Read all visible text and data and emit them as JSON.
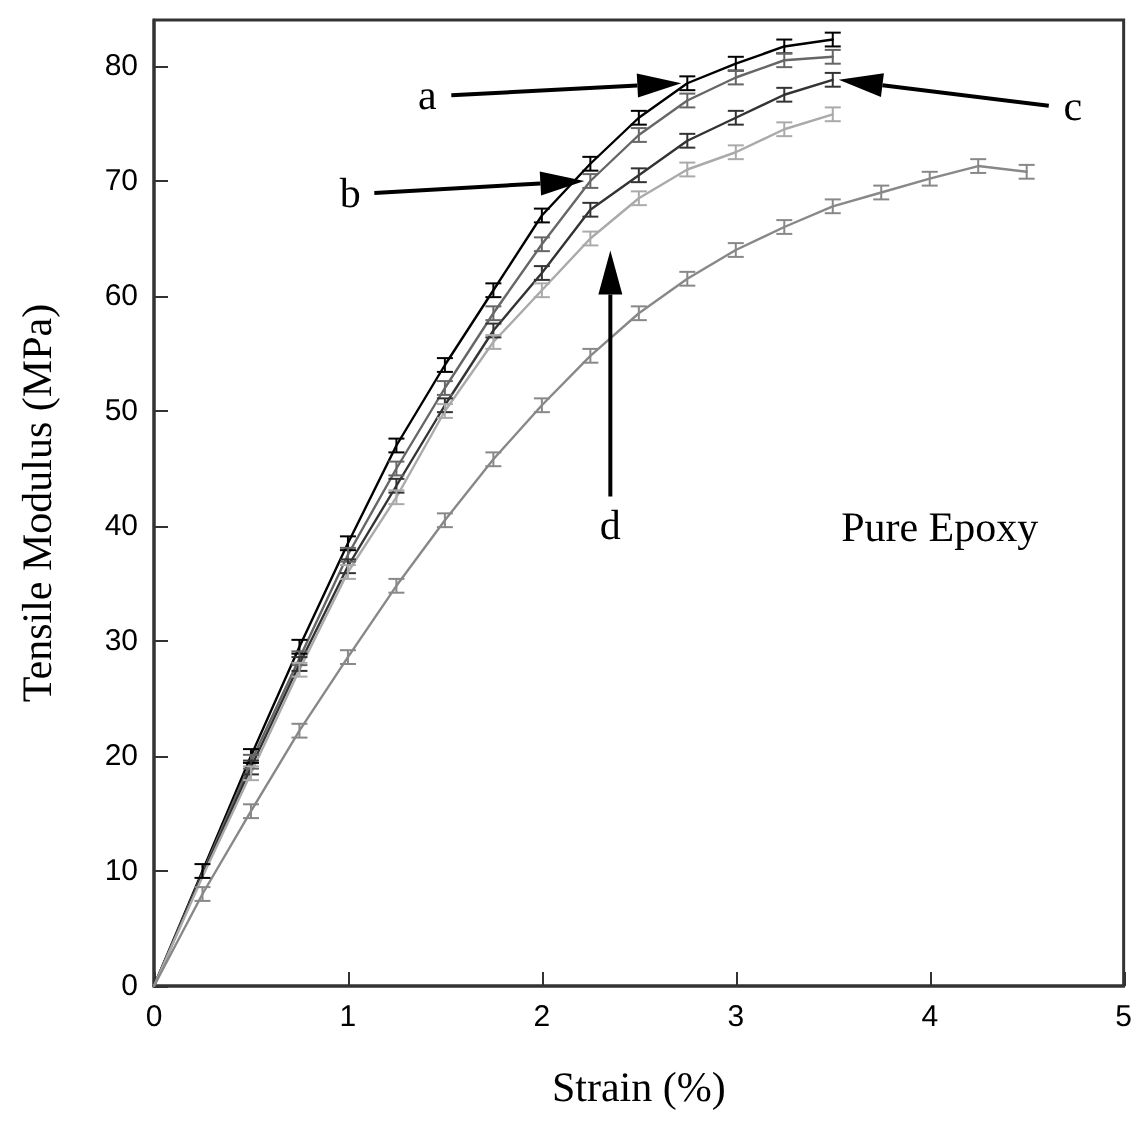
{
  "chart_data": {
    "type": "line",
    "xlabel": "Strain (%)",
    "ylabel": "Tensile Modulus (MPa)",
    "xlim": [
      0,
      5
    ],
    "xticks": [
      0,
      1,
      2,
      3,
      4,
      5
    ],
    "ylim": [
      0,
      84
    ],
    "yticks": [
      0,
      10,
      20,
      30,
      40,
      50,
      60,
      70,
      80
    ],
    "grid": false,
    "marker": "none",
    "line_style": "solid",
    "annotations": [
      "a",
      "b",
      "c",
      "d",
      "Pure Epoxy"
    ],
    "series": [
      {
        "color": "#000000",
        "x": [
          0,
          0.25,
          0.5,
          0.75,
          1,
          1.25,
          1.5,
          1.75,
          2,
          2.25,
          2.5,
          2.75,
          3,
          3.25,
          3.5
        ],
        "values": [
          0,
          10,
          20,
          29.5,
          38.5,
          47,
          54,
          60.5,
          67,
          71.5,
          75.5,
          78.5,
          80.2,
          81.7,
          82.3
        ],
        "errors": [
          null,
          0.6,
          0.6,
          0.6,
          0.6,
          0.6,
          0.6,
          0.6,
          0.6,
          0.6,
          0.6,
          0.6,
          0.6,
          0.6,
          0.6
        ]
      },
      {
        "color": "#666666",
        "x": [
          0,
          0.25,
          0.5,
          0.75,
          1,
          1.25,
          1.5,
          1.75,
          2,
          2.25,
          2.5,
          2.75,
          3,
          3.25,
          3.5
        ],
        "values": [
          0,
          9.8,
          19.5,
          28.5,
          37.5,
          45,
          52,
          58.5,
          64.5,
          70,
          74,
          77,
          79,
          80.5,
          80.8
        ],
        "errors": [
          null,
          null,
          0.6,
          0.6,
          0.6,
          0.6,
          0.6,
          0.6,
          0.6,
          0.6,
          0.6,
          0.6,
          0.6,
          0.6,
          0.6
        ]
      },
      {
        "color": "#333333",
        "x": [
          0,
          0.25,
          0.5,
          0.75,
          1,
          1.25,
          1.5,
          1.75,
          2,
          2.25,
          2.5,
          2.75,
          3,
          3.25,
          3.5
        ],
        "values": [
          0,
          9.7,
          19,
          28,
          36.5,
          43.5,
          50.5,
          57,
          62,
          67.5,
          70.5,
          73.5,
          75.5,
          77.5,
          78.8
        ],
        "errors": [
          null,
          null,
          0.6,
          0.6,
          0.6,
          0.6,
          0.6,
          0.6,
          0.6,
          0.6,
          0.6,
          0.6,
          0.6,
          0.6,
          0.6
        ]
      },
      {
        "color": "#aaaaaa",
        "x": [
          0,
          0.25,
          0.5,
          0.75,
          1,
          1.25,
          1.5,
          1.75,
          2,
          2.25,
          2.5,
          2.75,
          3,
          3.25,
          3.5
        ],
        "values": [
          0,
          9.5,
          18.5,
          27.5,
          36,
          42.5,
          50,
          56,
          60.5,
          65,
          68.5,
          71,
          72.5,
          74.5,
          75.8
        ],
        "errors": [
          null,
          null,
          0.6,
          0.6,
          0.6,
          0.6,
          0.6,
          0.6,
          0.6,
          0.6,
          0.6,
          0.6,
          0.6,
          0.6,
          0.6
        ]
      },
      {
        "color": "#888888",
        "x": [
          0,
          0.25,
          0.5,
          0.75,
          1,
          1.25,
          1.5,
          1.75,
          2,
          2.25,
          2.5,
          2.75,
          3,
          3.25,
          3.5,
          3.75,
          4,
          4.25,
          4.5
        ],
        "values": [
          0,
          8,
          15.2,
          22.2,
          28.6,
          34.8,
          40.5,
          45.8,
          50.5,
          54.8,
          58.5,
          61.5,
          64,
          66,
          67.8,
          69,
          70.2,
          71.3,
          70.8
        ],
        "errors": [
          null,
          0.6,
          0.6,
          0.6,
          0.6,
          0.6,
          0.6,
          0.6,
          0.6,
          0.6,
          0.6,
          0.6,
          0.6,
          0.6,
          0.6,
          0.6,
          0.6,
          0.6,
          0.6
        ]
      }
    ]
  }
}
